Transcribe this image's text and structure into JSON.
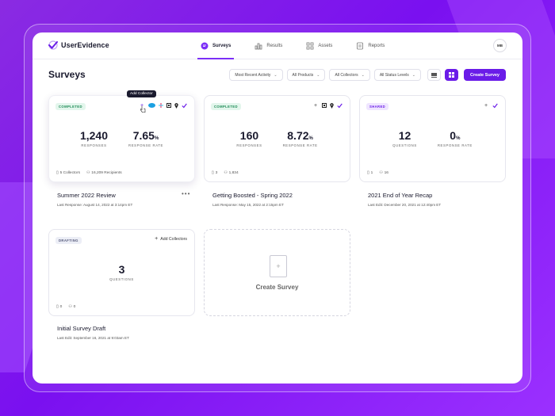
{
  "app": {
    "name": "UserEvidence",
    "brand_color": "#6a1ce8",
    "user_initials": "MB"
  },
  "nav": [
    {
      "label": "Surveys",
      "icon": "chat-icon",
      "active": true
    },
    {
      "label": "Results",
      "icon": "bar-chart-icon",
      "active": false
    },
    {
      "label": "Assets",
      "icon": "grid-icon",
      "active": false
    },
    {
      "label": "Reports",
      "icon": "report-icon",
      "active": false
    }
  ],
  "page": {
    "title": "Surveys"
  },
  "filters": {
    "activity": "Most Recent Activity",
    "products": "All Products",
    "collectors": "All Collectors",
    "status": "All Status Levels"
  },
  "create_button": "Create Survey",
  "tooltip": "Add Collector",
  "cards": [
    {
      "status": "COMPLETED",
      "stat1_value": "1,240",
      "stat1_label": "RESPONSES",
      "stat2_value": "7.65",
      "stat2_unit": "%",
      "stat2_label": "RESPONSE RATE",
      "foot1": "5 Collectors",
      "foot2": "16,209 Recipients",
      "title": "Summer 2022 Review",
      "subtitle": "Last Response: August 14, 2022 at 3:14pm ET",
      "menu": "•••"
    },
    {
      "status": "COMPLETED",
      "stat1_value": "160",
      "stat1_label": "RESPONSES",
      "stat2_value": "8.72",
      "stat2_unit": "%",
      "stat2_label": "RESPONSE RATE",
      "foot1": "3",
      "foot2": "1,834",
      "title": "Getting Boosted - Spring 2022",
      "subtitle": "Last Response: May 15, 2022 at 2:15pm ET"
    },
    {
      "status": "SHARED",
      "stat1_value": "12",
      "stat1_label": "QUESTIONS",
      "stat2_value": "0",
      "stat2_unit": "%",
      "stat2_label": "RESPONSE RATE",
      "foot1": "1",
      "foot2": "16",
      "title": "2021 End of Year Recap",
      "subtitle": "Last Edit: December 20, 2021 at 12:40pm ET"
    },
    {
      "status": "DRAFTING",
      "add_collectors": "Add Collectors",
      "stat1_value": "3",
      "stat1_label": "QUESTIONS",
      "foot1": "0",
      "foot2": "0",
      "title": "Initial Survey Draft",
      "subtitle": "Last Edit: September 16, 2021 at 9:03am ET"
    }
  ],
  "create_card": {
    "label": "Create Survey"
  }
}
